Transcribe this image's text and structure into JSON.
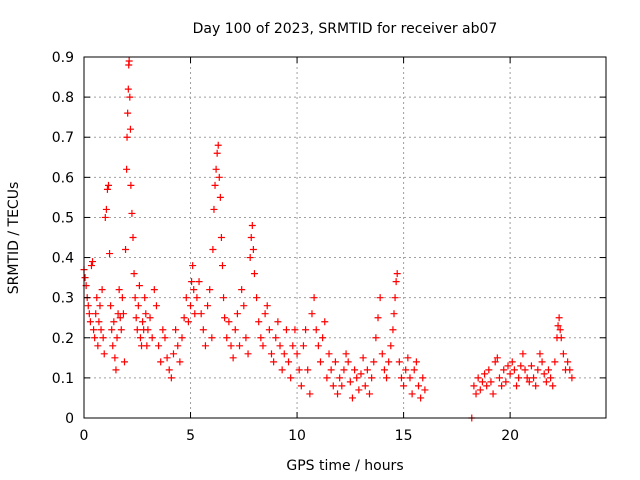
{
  "chart_data": {
    "type": "scatter",
    "title": "Day 100 of 2023, SRMTID for receiver ab07",
    "xlabel": "GPS time / hours",
    "ylabel": "SRMTID / TECUs",
    "xlim": [
      0,
      24.5
    ],
    "ylim": [
      0,
      0.9
    ],
    "xticks": [
      0,
      5,
      10,
      15,
      20
    ],
    "yticks": [
      0,
      0.1,
      0.2,
      0.3,
      0.4,
      0.5,
      0.6,
      0.7,
      0.8,
      0.9
    ],
    "xtick_labels": [
      "0",
      "5",
      "10",
      "15",
      "20"
    ],
    "ytick_labels": [
      "0",
      "0.1",
      "0.2",
      "0.3",
      "0.4",
      "0.5",
      "0.6",
      "0.7",
      "0.8",
      "0.9"
    ],
    "grid": true,
    "marker": "+",
    "color": "#ff0000",
    "series": [
      {
        "name": "SRMTID",
        "points": [
          [
            0.0,
            0.37
          ],
          [
            0.05,
            0.35
          ],
          [
            0.1,
            0.33
          ],
          [
            0.15,
            0.3
          ],
          [
            0.2,
            0.28
          ],
          [
            0.25,
            0.26
          ],
          [
            0.3,
            0.24
          ],
          [
            0.35,
            0.38
          ],
          [
            0.4,
            0.39
          ],
          [
            0.45,
            0.22
          ],
          [
            0.5,
            0.2
          ],
          [
            0.55,
            0.26
          ],
          [
            0.6,
            0.3
          ],
          [
            0.65,
            0.18
          ],
          [
            0.7,
            0.24
          ],
          [
            0.75,
            0.28
          ],
          [
            0.8,
            0.22
          ],
          [
            0.85,
            0.32
          ],
          [
            0.9,
            0.2
          ],
          [
            0.95,
            0.16
          ],
          [
            1.0,
            0.5
          ],
          [
            1.05,
            0.52
          ],
          [
            1.1,
            0.57
          ],
          [
            1.15,
            0.58
          ],
          [
            1.2,
            0.41
          ],
          [
            1.25,
            0.28
          ],
          [
            1.3,
            0.22
          ],
          [
            1.35,
            0.18
          ],
          [
            1.4,
            0.24
          ],
          [
            1.45,
            0.15
          ],
          [
            1.5,
            0.12
          ],
          [
            1.55,
            0.2
          ],
          [
            1.6,
            0.26
          ],
          [
            1.65,
            0.32
          ],
          [
            1.7,
            0.25
          ],
          [
            1.75,
            0.22
          ],
          [
            1.8,
            0.3
          ],
          [
            1.85,
            0.26
          ],
          [
            1.9,
            0.14
          ],
          [
            1.95,
            0.42
          ],
          [
            2.0,
            0.62
          ],
          [
            2.02,
            0.7
          ],
          [
            2.05,
            0.76
          ],
          [
            2.08,
            0.82
          ],
          [
            2.1,
            0.88
          ],
          [
            2.12,
            0.89
          ],
          [
            2.15,
            0.8
          ],
          [
            2.18,
            0.72
          ],
          [
            2.2,
            0.58
          ],
          [
            2.25,
            0.51
          ],
          [
            2.3,
            0.45
          ],
          [
            2.35,
            0.36
          ],
          [
            2.4,
            0.3
          ],
          [
            2.45,
            0.25
          ],
          [
            2.5,
            0.22
          ],
          [
            2.55,
            0.28
          ],
          [
            2.6,
            0.33
          ],
          [
            2.65,
            0.2
          ],
          [
            2.7,
            0.18
          ],
          [
            2.75,
            0.24
          ],
          [
            2.8,
            0.22
          ],
          [
            2.85,
            0.3
          ],
          [
            2.9,
            0.26
          ],
          [
            2.95,
            0.18
          ],
          [
            3.0,
            0.22
          ],
          [
            3.1,
            0.25
          ],
          [
            3.2,
            0.2
          ],
          [
            3.3,
            0.32
          ],
          [
            3.4,
            0.28
          ],
          [
            3.5,
            0.18
          ],
          [
            3.6,
            0.14
          ],
          [
            3.7,
            0.22
          ],
          [
            3.8,
            0.2
          ],
          [
            3.9,
            0.15
          ],
          [
            4.0,
            0.12
          ],
          [
            4.1,
            0.1
          ],
          [
            4.2,
            0.16
          ],
          [
            4.3,
            0.22
          ],
          [
            4.4,
            0.18
          ],
          [
            4.5,
            0.14
          ],
          [
            4.6,
            0.2
          ],
          [
            4.7,
            0.25
          ],
          [
            4.8,
            0.3
          ],
          [
            4.9,
            0.24
          ],
          [
            5.0,
            0.28
          ],
          [
            5.05,
            0.34
          ],
          [
            5.1,
            0.38
          ],
          [
            5.15,
            0.32
          ],
          [
            5.2,
            0.26
          ],
          [
            5.3,
            0.3
          ],
          [
            5.4,
            0.34
          ],
          [
            5.5,
            0.26
          ],
          [
            5.6,
            0.22
          ],
          [
            5.7,
            0.18
          ],
          [
            5.8,
            0.28
          ],
          [
            5.9,
            0.32
          ],
          [
            6.0,
            0.2
          ],
          [
            6.05,
            0.42
          ],
          [
            6.1,
            0.52
          ],
          [
            6.15,
            0.58
          ],
          [
            6.2,
            0.62
          ],
          [
            6.25,
            0.66
          ],
          [
            6.3,
            0.68
          ],
          [
            6.35,
            0.6
          ],
          [
            6.4,
            0.55
          ],
          [
            6.45,
            0.45
          ],
          [
            6.5,
            0.38
          ],
          [
            6.55,
            0.3
          ],
          [
            6.6,
            0.25
          ],
          [
            6.7,
            0.2
          ],
          [
            6.8,
            0.24
          ],
          [
            6.9,
            0.18
          ],
          [
            7.0,
            0.15
          ],
          [
            7.1,
            0.22
          ],
          [
            7.2,
            0.26
          ],
          [
            7.3,
            0.18
          ],
          [
            7.4,
            0.32
          ],
          [
            7.5,
            0.28
          ],
          [
            7.6,
            0.2
          ],
          [
            7.7,
            0.16
          ],
          [
            7.8,
            0.4
          ],
          [
            7.85,
            0.45
          ],
          [
            7.9,
            0.48
          ],
          [
            7.95,
            0.42
          ],
          [
            8.0,
            0.36
          ],
          [
            8.1,
            0.3
          ],
          [
            8.2,
            0.24
          ],
          [
            8.3,
            0.2
          ],
          [
            8.4,
            0.18
          ],
          [
            8.5,
            0.26
          ],
          [
            8.6,
            0.28
          ],
          [
            8.7,
            0.22
          ],
          [
            8.8,
            0.16
          ],
          [
            8.9,
            0.14
          ],
          [
            9.0,
            0.2
          ],
          [
            9.1,
            0.24
          ],
          [
            9.2,
            0.18
          ],
          [
            9.3,
            0.12
          ],
          [
            9.4,
            0.16
          ],
          [
            9.5,
            0.22
          ],
          [
            9.6,
            0.14
          ],
          [
            9.7,
            0.1
          ],
          [
            9.8,
            0.18
          ],
          [
            9.9,
            0.22
          ],
          [
            10.0,
            0.16
          ],
          [
            10.1,
            0.12
          ],
          [
            10.2,
            0.08
          ],
          [
            10.3,
            0.18
          ],
          [
            10.4,
            0.22
          ],
          [
            10.5,
            0.12
          ],
          [
            10.6,
            0.06
          ],
          [
            10.7,
            0.26
          ],
          [
            10.8,
            0.3
          ],
          [
            10.9,
            0.22
          ],
          [
            11.0,
            0.18
          ],
          [
            11.1,
            0.14
          ],
          [
            11.2,
            0.2
          ],
          [
            11.3,
            0.24
          ],
          [
            11.4,
            0.1
          ],
          [
            11.5,
            0.16
          ],
          [
            11.6,
            0.12
          ],
          [
            11.7,
            0.08
          ],
          [
            11.8,
            0.14
          ],
          [
            11.9,
            0.06
          ],
          [
            12.0,
            0.1
          ],
          [
            12.1,
            0.08
          ],
          [
            12.2,
            0.12
          ],
          [
            12.3,
            0.16
          ],
          [
            12.4,
            0.14
          ],
          [
            12.5,
            0.09
          ],
          [
            12.6,
            0.05
          ],
          [
            12.7,
            0.12
          ],
          [
            12.8,
            0.1
          ],
          [
            12.9,
            0.07
          ],
          [
            13.0,
            0.11
          ],
          [
            13.1,
            0.15
          ],
          [
            13.2,
            0.08
          ],
          [
            13.3,
            0.12
          ],
          [
            13.4,
            0.06
          ],
          [
            13.5,
            0.1
          ],
          [
            13.6,
            0.14
          ],
          [
            13.7,
            0.2
          ],
          [
            13.8,
            0.25
          ],
          [
            13.9,
            0.3
          ],
          [
            14.0,
            0.16
          ],
          [
            14.1,
            0.12
          ],
          [
            14.2,
            0.1
          ],
          [
            14.3,
            0.14
          ],
          [
            14.4,
            0.18
          ],
          [
            14.5,
            0.22
          ],
          [
            14.55,
            0.26
          ],
          [
            14.6,
            0.3
          ],
          [
            14.65,
            0.34
          ],
          [
            14.7,
            0.36
          ],
          [
            14.8,
            0.14
          ],
          [
            14.9,
            0.1
          ],
          [
            15.0,
            0.08
          ],
          [
            15.1,
            0.12
          ],
          [
            15.2,
            0.15
          ],
          [
            15.3,
            0.1
          ],
          [
            15.4,
            0.06
          ],
          [
            15.5,
            0.12
          ],
          [
            15.6,
            0.14
          ],
          [
            15.7,
            0.08
          ],
          [
            15.8,
            0.05
          ],
          [
            15.9,
            0.1
          ],
          [
            16.0,
            0.07
          ],
          [
            18.2,
            0.0
          ],
          [
            18.3,
            0.08
          ],
          [
            18.4,
            0.06
          ],
          [
            18.5,
            0.1
          ],
          [
            18.6,
            0.07
          ],
          [
            18.7,
            0.09
          ],
          [
            18.8,
            0.11
          ],
          [
            18.9,
            0.08
          ],
          [
            19.0,
            0.12
          ],
          [
            19.1,
            0.09
          ],
          [
            19.2,
            0.06
          ],
          [
            19.3,
            0.14
          ],
          [
            19.4,
            0.15
          ],
          [
            19.5,
            0.1
          ],
          [
            19.6,
            0.08
          ],
          [
            19.7,
            0.12
          ],
          [
            19.8,
            0.09
          ],
          [
            19.9,
            0.13
          ],
          [
            20.0,
            0.11
          ],
          [
            20.1,
            0.14
          ],
          [
            20.2,
            0.12
          ],
          [
            20.3,
            0.08
          ],
          [
            20.4,
            0.1
          ],
          [
            20.5,
            0.13
          ],
          [
            20.6,
            0.16
          ],
          [
            20.7,
            0.12
          ],
          [
            20.8,
            0.1
          ],
          [
            20.9,
            0.09
          ],
          [
            21.0,
            0.13
          ],
          [
            21.1,
            0.1
          ],
          [
            21.2,
            0.08
          ],
          [
            21.3,
            0.12
          ],
          [
            21.4,
            0.16
          ],
          [
            21.5,
            0.14
          ],
          [
            21.6,
            0.11
          ],
          [
            21.7,
            0.09
          ],
          [
            21.8,
            0.12
          ],
          [
            21.9,
            0.1
          ],
          [
            22.0,
            0.08
          ],
          [
            22.1,
            0.14
          ],
          [
            22.2,
            0.2
          ],
          [
            22.25,
            0.23
          ],
          [
            22.3,
            0.25
          ],
          [
            22.35,
            0.22
          ],
          [
            22.4,
            0.2
          ],
          [
            22.5,
            0.16
          ],
          [
            22.6,
            0.12
          ],
          [
            22.7,
            0.14
          ],
          [
            22.8,
            0.12
          ],
          [
            22.9,
            0.1
          ]
        ]
      }
    ]
  }
}
